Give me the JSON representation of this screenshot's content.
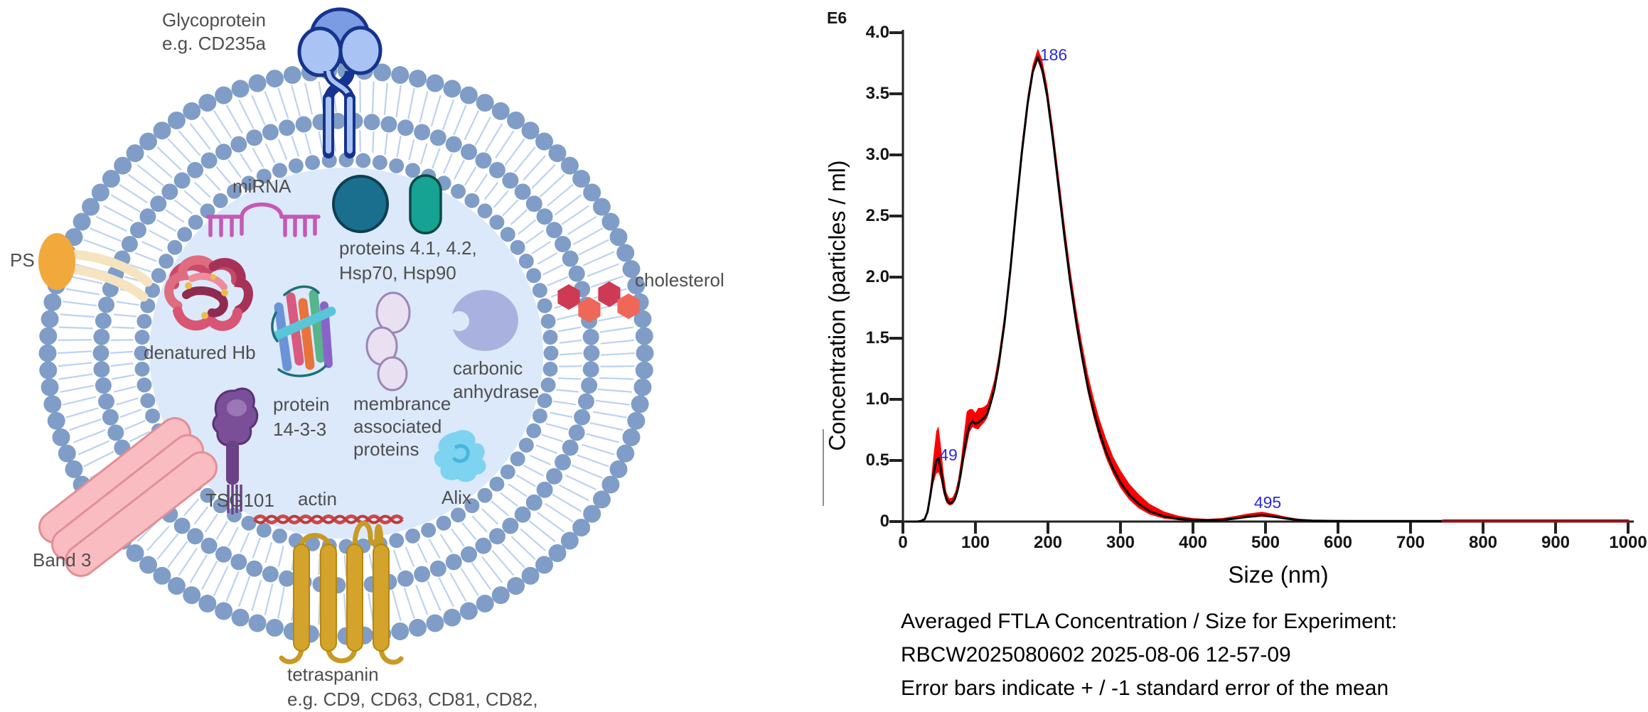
{
  "diagram": {
    "labels": {
      "glycoprotein": [
        "Glycoprotein",
        "e.g. CD235a"
      ],
      "mirna": "miRNA",
      "proteins_4142": [
        "proteins 4.1, 4.2,",
        "Hsp70, Hsp90"
      ],
      "ps": "PS",
      "cholesterol": "cholesterol",
      "denatured_hb": "denatured Hb",
      "protein_1433": [
        "protein",
        "14-3-3"
      ],
      "membrane_associated": [
        "membrance",
        "associated",
        "proteins"
      ],
      "carbonic_anhydrase": [
        "carbonic",
        "anhydrase"
      ],
      "tsg101": "TSG101",
      "actin": "actin",
      "alix": "Alix",
      "band3": "Band 3",
      "tetraspanin": [
        "tetraspanin",
        "e.g. CD9, CD63, CD81, CD82,"
      ]
    },
    "colors": {
      "membrane_dots": "#7f9dc7",
      "lipid_tails": "#bdd2ee",
      "interior": "#dbe9fb",
      "glycoprotein_fill": "#a9c4f4",
      "glycoprotein_outline": "#16338f",
      "mirna": "#c459b5",
      "teal_circle": "#1b6f8e",
      "teal_pill": "#16a393",
      "ps_head": "#f2a93b",
      "ps_tail": "#f6e3c0",
      "cholesterol_dark": "#ce3a54",
      "cholesterol_light": "#ef6757",
      "band3_fill": "#f9bdc1",
      "band3_outline": "#e28f96",
      "tetraspanin": "#d4a32c",
      "tsg101": "#7a4f97",
      "alix": "#7ed3f0",
      "actin": "#cf4747",
      "label_text": "#4e4e4e"
    }
  },
  "chart": {
    "multiplier": "E6",
    "ylabel": "Concentration (particles / ml)",
    "xlabel": "Size (nm)",
    "caption": [
      "Averaged FTLA Concentration / Size for Experiment:",
      "RBCW2025080602 2025-08-06 12-57-09",
      "Error bars indicate + / -1 standard error of the mean"
    ],
    "peak_label_color": "#2a2ae0"
  },
  "chart_data": {
    "type": "line",
    "xlabel": "Size (nm)",
    "ylabel": "Concentration (particles / ml)",
    "y_unit_multiplier": "E6",
    "xlim": [
      0,
      1000
    ],
    "ylim": [
      0,
      4.0
    ],
    "x_ticks": [
      0,
      100,
      200,
      300,
      400,
      500,
      600,
      700,
      800,
      900,
      1000
    ],
    "y_ticks": [
      0,
      0.5,
      1.0,
      1.5,
      2.0,
      2.5,
      3.0,
      3.5,
      4.0
    ],
    "grid": false,
    "peaks": [
      {
        "x": 49,
        "y": 0.52,
        "label": "49"
      },
      {
        "x": 186,
        "y": 3.8,
        "label": "186"
      },
      {
        "x": 495,
        "y": 0.05,
        "label": "495"
      }
    ],
    "series": [
      {
        "name": "Averaged FTLA concentration",
        "color": "#000000",
        "x": [
          5,
          20,
          25,
          30,
          34,
          38,
          42,
          46,
          49,
          52,
          56,
          60,
          64,
          68,
          72,
          76,
          80,
          84,
          88,
          92,
          96,
          100,
          104,
          108,
          112,
          116,
          120,
          126,
          132,
          140,
          148,
          156,
          164,
          172,
          179,
          186,
          192,
          199,
          207,
          215,
          223,
          231,
          239,
          247,
          255,
          263,
          271,
          280,
          290,
          300,
          312,
          325,
          340,
          360,
          380,
          400,
          420,
          440,
          458,
          475,
          495,
          512,
          528,
          545,
          565,
          590,
          620,
          660,
          700,
          745,
          800,
          860,
          920,
          1000
        ],
        "y": [
          0,
          0,
          0.005,
          0.02,
          0.08,
          0.22,
          0.38,
          0.5,
          0.52,
          0.44,
          0.28,
          0.18,
          0.15,
          0.155,
          0.19,
          0.27,
          0.4,
          0.56,
          0.7,
          0.79,
          0.82,
          0.8,
          0.81,
          0.83,
          0.85,
          0.88,
          0.95,
          1.08,
          1.28,
          1.62,
          2.05,
          2.55,
          3.02,
          3.42,
          3.68,
          3.8,
          3.7,
          3.48,
          3.12,
          2.72,
          2.32,
          1.95,
          1.63,
          1.35,
          1.1,
          0.9,
          0.73,
          0.57,
          0.43,
          0.32,
          0.22,
          0.145,
          0.085,
          0.042,
          0.022,
          0.013,
          0.01,
          0.013,
          0.025,
          0.04,
          0.052,
          0.04,
          0.025,
          0.013,
          0.007,
          0.005,
          0.004,
          0.004,
          0.004,
          0.004,
          0.004,
          0.004,
          0.004,
          0.004
        ]
      }
    ],
    "error_band": {
      "color": "#fa0000",
      "se_plus": [
        0.001,
        0.002,
        0.004,
        0.01,
        0.03,
        0.07,
        0.15,
        0.24,
        0.26,
        0.2,
        0.12,
        0.06,
        0.04,
        0.04,
        0.05,
        0.07,
        0.1,
        0.15,
        0.2,
        0.13,
        0.1,
        0.09,
        0.12,
        0.1,
        0.09,
        0.08,
        0.08,
        0.08,
        0.08,
        0.08,
        0.08,
        0.08,
        0.08,
        0.07,
        0.06,
        0.07,
        0.08,
        0.09,
        0.1,
        0.11,
        0.11,
        0.11,
        0.11,
        0.11,
        0.11,
        0.11,
        0.11,
        0.11,
        0.1,
        0.1,
        0.09,
        0.08,
        0.06,
        0.04,
        0.025,
        0.015,
        0.012,
        0.015,
        0.02,
        0.025,
        0.028,
        0.022,
        0.015,
        0.01,
        0.007,
        0.005,
        0.004,
        0.004,
        0.004,
        0.006,
        0.006,
        0.006,
        0.006,
        0.006
      ],
      "se_minus_factor": 0.45
    },
    "tail_overlay": {
      "from_x": 745,
      "color": "#8b1818"
    }
  }
}
